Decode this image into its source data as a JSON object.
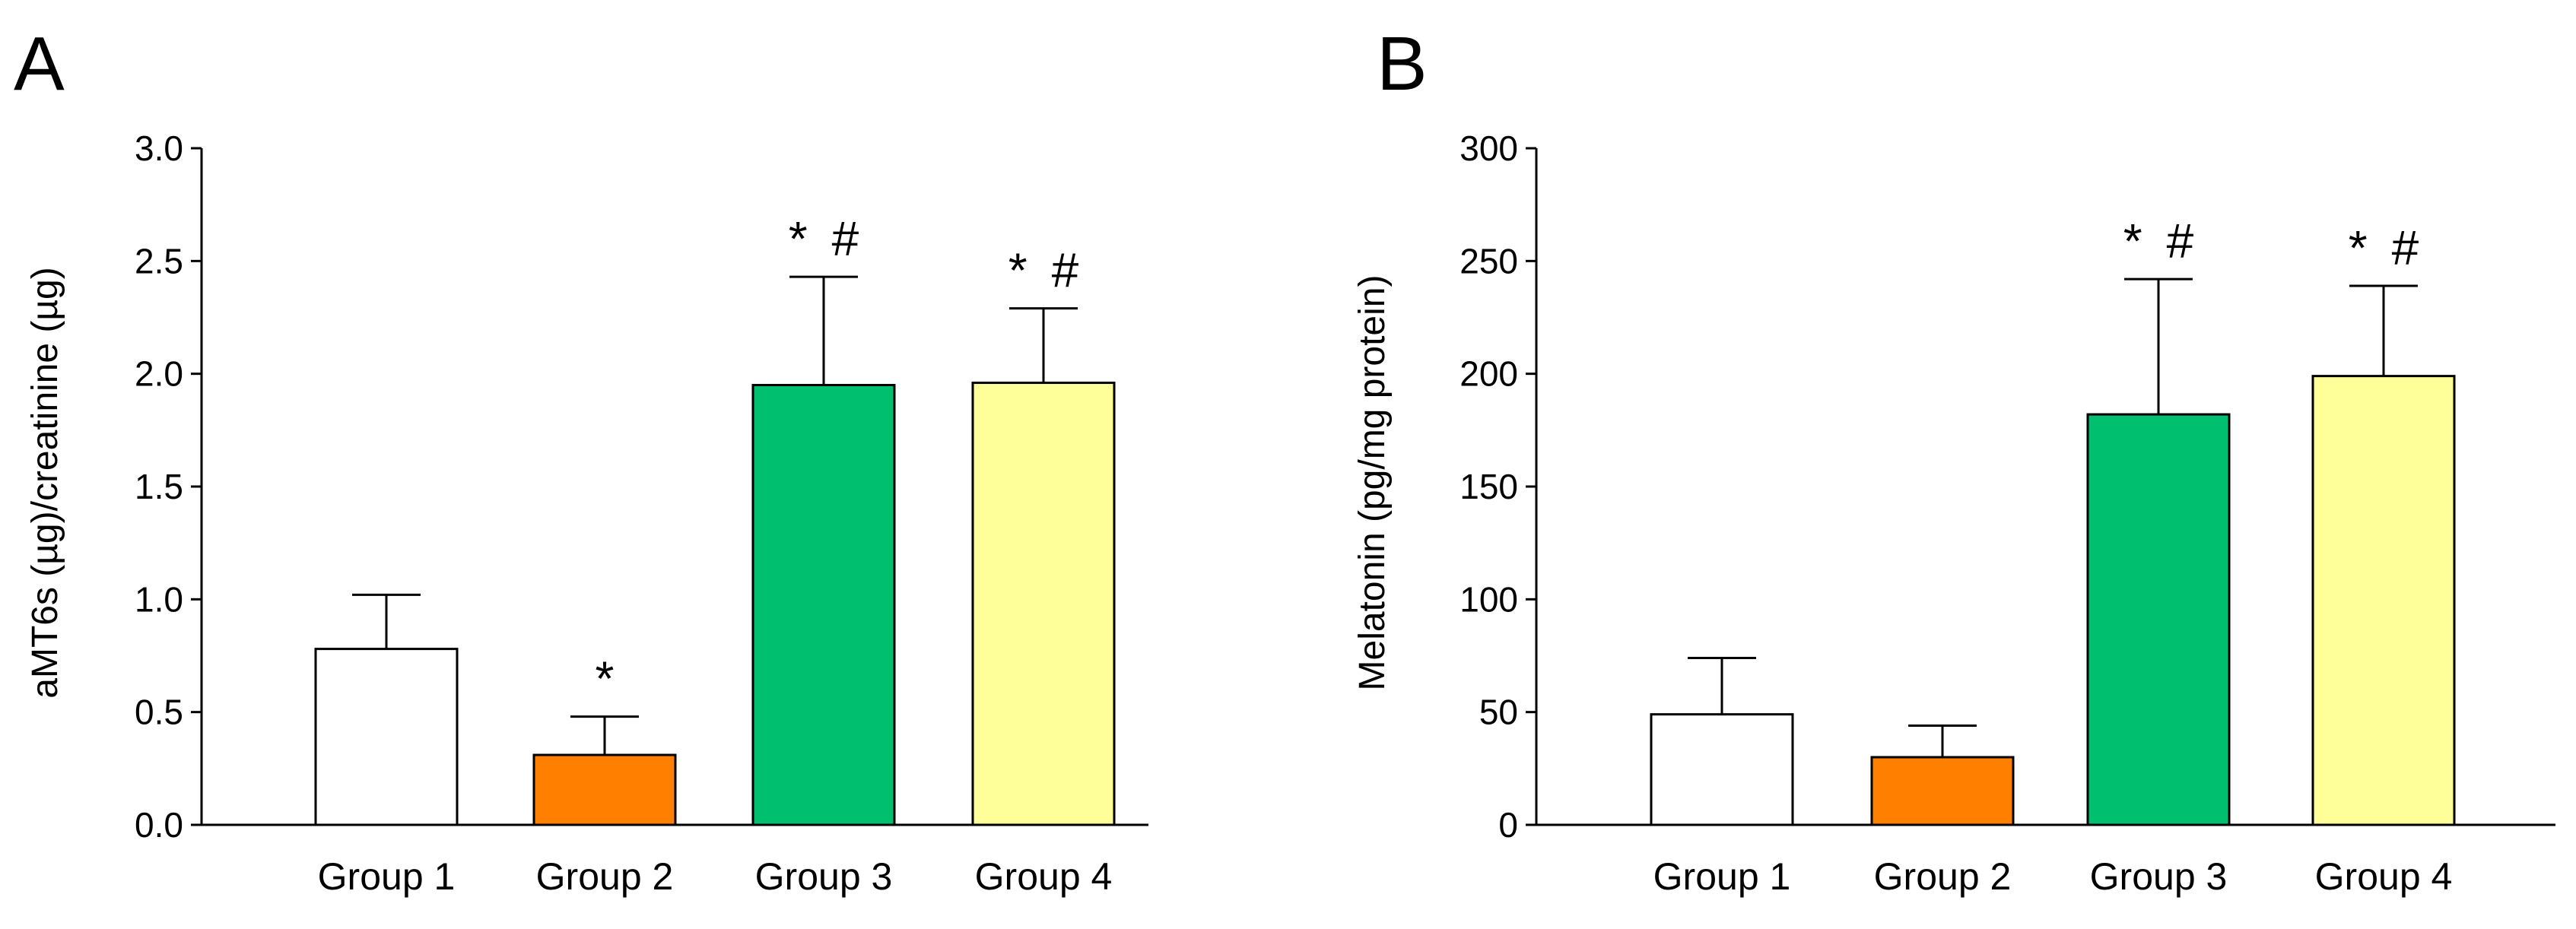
{
  "figure": {
    "panels": [
      "A",
      "B"
    ]
  },
  "chart_data": [
    {
      "type": "bar",
      "panel": "A",
      "title": "",
      "xlabel": "",
      "ylabel": "aMT6s (µg)/creatinine (µg)",
      "ylim": [
        0,
        3.0
      ],
      "yticks": [
        "0.0",
        "0.5",
        "1.0",
        "1.5",
        "2.0",
        "2.5",
        "3.0"
      ],
      "ytick_values": [
        0,
        0.5,
        1.0,
        1.5,
        2.0,
        2.5,
        3.0
      ],
      "categories": [
        "Group 1",
        "Group 2",
        "Group 3",
        "Group 4"
      ],
      "values": [
        0.78,
        0.31,
        1.95,
        1.96
      ],
      "error_upper": [
        1.02,
        0.48,
        2.43,
        2.29
      ],
      "annotations": [
        "",
        "*",
        "* #",
        "* #"
      ],
      "colors": [
        "#ffffff",
        "#ff7f00",
        "#00bf6f",
        "#ffff99"
      ]
    },
    {
      "type": "bar",
      "panel": "B",
      "title": "",
      "xlabel": "",
      "ylabel": "Melatonin (pg/mg protein)",
      "ylim": [
        0,
        300
      ],
      "yticks": [
        "0",
        "50",
        "100",
        "150",
        "200",
        "250",
        "300"
      ],
      "ytick_values": [
        0,
        50,
        100,
        150,
        200,
        250,
        300
      ],
      "categories": [
        "Group 1",
        "Group 2",
        "Group 3",
        "Group 4"
      ],
      "values": [
        49,
        30,
        182,
        199
      ],
      "error_upper": [
        74,
        44,
        242,
        239
      ],
      "annotations": [
        "",
        "",
        "* #",
        "* #"
      ],
      "colors": [
        "#ffffff",
        "#ff7f00",
        "#00bf6f",
        "#ffff99"
      ]
    }
  ]
}
